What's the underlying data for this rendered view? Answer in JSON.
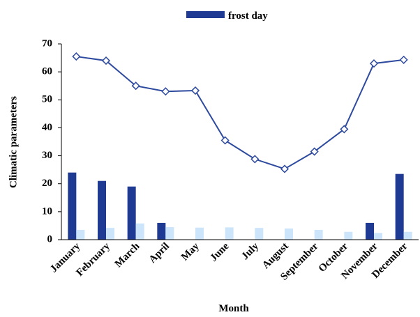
{
  "chart_data": {
    "type": "bar",
    "x_label": "Month",
    "y_label": "Climatic parameters",
    "categories": [
      "January",
      "February",
      "March",
      "April",
      "May",
      "June",
      "July",
      "August",
      "September",
      "October",
      "November",
      "December"
    ],
    "series": [
      {
        "name": "frost day",
        "type": "bar",
        "color": "#1f3a93",
        "values": [
          24,
          21,
          19,
          6,
          0,
          0,
          0,
          0,
          0,
          0,
          6,
          23.5
        ]
      },
      {
        "type": "bar",
        "color": "#cce5fb",
        "values": [
          3.5,
          4.2,
          5.8,
          4.5,
          4.3,
          4.4,
          4.2,
          4,
          3.5,
          2.8,
          2.4,
          2.8
        ]
      },
      {
        "type": "line",
        "color": "#2e4a9e",
        "values": [
          65.5,
          64,
          55,
          53,
          53.3,
          35.5,
          28.8,
          25.3,
          31.5,
          39.5,
          63,
          64.3
        ]
      }
    ],
    "ylim": [
      0,
      70
    ],
    "yticks": [
      0,
      10,
      20,
      30,
      40,
      50,
      60,
      70
    ],
    "grid": false,
    "legend": "top"
  }
}
